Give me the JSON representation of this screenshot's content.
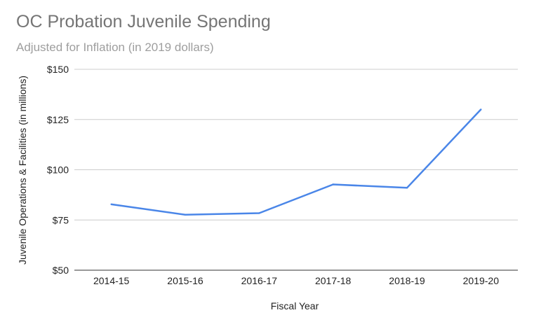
{
  "chart_data": {
    "type": "line",
    "title": "OC Probation Juvenile Spending",
    "subtitle": "Adjusted for Inflation (in 2019 dollars)",
    "xlabel": "Fiscal Year",
    "ylabel": "Juvenile Operations & Facilities (in millions)",
    "categories": [
      "2014-15",
      "2015-16",
      "2016-17",
      "2017-18",
      "2018-19",
      "2019-20"
    ],
    "series": [
      {
        "values": [
          82.8,
          77.6,
          78.4,
          92.7,
          91.0,
          130.0
        ]
      }
    ],
    "ylim": [
      50,
      150
    ],
    "yticks": [
      50,
      75,
      100,
      125,
      150
    ],
    "ytick_labels": [
      "$50",
      "$75",
      "$100",
      "$125",
      "$150"
    ],
    "grid": true,
    "legend": "none",
    "colors": {
      "line": "#4a86e8",
      "grid": "#cccccc",
      "baseline": "#333333"
    }
  }
}
